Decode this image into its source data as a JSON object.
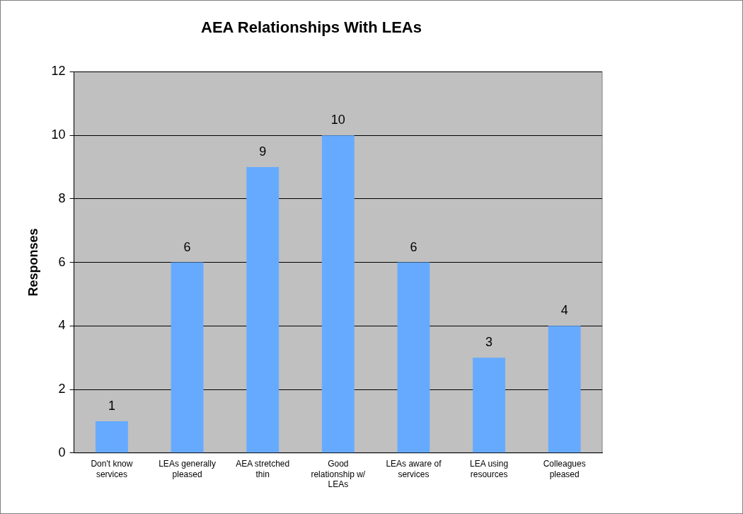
{
  "chart_data": {
    "type": "bar",
    "title": "AEA Relationships With LEAs",
    "ylabel": "Responses",
    "categories": [
      "Don't know services",
      "LEAs generally pleased",
      "AEA stretched thin",
      "Good relationship w/ LEAs",
      "LEAs aware of services",
      "LEA using resources",
      "Colleagues pleased"
    ],
    "values": [
      1,
      6,
      9,
      10,
      6,
      3,
      4
    ],
    "color": "#66aaff",
    "ylim": [
      0,
      12
    ],
    "yticks": [
      0,
      2,
      4,
      6,
      8,
      10,
      12
    ],
    "grid": "y",
    "legend": false,
    "data_labels": true
  }
}
